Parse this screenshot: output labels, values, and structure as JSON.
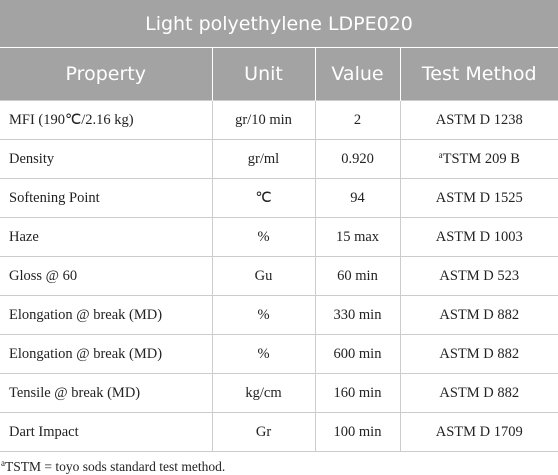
{
  "title": "Light polyethylene LDPE020",
  "table": {
    "header": [
      "Property",
      "Unit",
      "Value",
      "Test Method"
    ],
    "rows": [
      [
        "MFI (190℃/2.16 kg)",
        "gr/10 min",
        "2",
        "ASTM D 1238"
      ],
      [
        "Density",
        "gr/ml",
        "0.920",
        {
          "sup": "a",
          "text": "TSTM 209 B"
        }
      ],
      [
        "Softening Point",
        "℃",
        "94",
        "ASTM D 1525"
      ],
      [
        "Haze",
        "%",
        "15 max",
        "ASTM D 1003"
      ],
      [
        "Gloss @ 60",
        "Gu",
        "60 min",
        "ASTM D 523"
      ],
      [
        "Elongation @ break (MD)",
        "%",
        "330 min",
        "ASTM D 882"
      ],
      [
        "Elongation @ break (MD)",
        "%",
        "600 min",
        "ASTM D 882"
      ],
      [
        "Tensile @ break (MD)",
        "kg/cm",
        "160 min",
        "ASTM D 882"
      ],
      [
        "Dart Impact",
        "Gr",
        "100 min",
        "ASTM D 1709"
      ]
    ]
  },
  "footnote": {
    "sup": "a",
    "text": "TSTM = toyo sods standard test method."
  }
}
